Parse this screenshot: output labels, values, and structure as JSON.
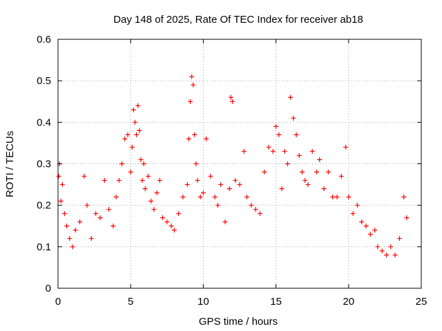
{
  "chart_data": {
    "type": "scatter",
    "title": "Day 148 of 2025, Rate Of TEC Index for receiver ab18",
    "xlabel": "GPS time / hours",
    "ylabel": "ROTI / TECUs",
    "xlim": [
      0,
      25
    ],
    "ylim": [
      0,
      0.6
    ],
    "xticks": [
      0,
      5,
      10,
      15,
      20,
      25
    ],
    "yticks": [
      0,
      0.1,
      0.2,
      0.3,
      0.4,
      0.5,
      0.6
    ],
    "grid": true,
    "marker": "plus",
    "color": "#ff0000",
    "series": [
      {
        "x": [
          0.05,
          0.1,
          0.2,
          0.3,
          0.45,
          0.6,
          0.8,
          1.0,
          1.2,
          1.5,
          1.8,
          2.0,
          2.3,
          2.6,
          2.9,
          3.2,
          3.5,
          3.8,
          4.0,
          4.2,
          4.4,
          4.6,
          4.8,
          5.0,
          5.1,
          5.2,
          5.3,
          5.4,
          5.5,
          5.6,
          5.7,
          5.8,
          5.9,
          6.0,
          6.2,
          6.4,
          6.6,
          6.8,
          7.0,
          7.2,
          7.5,
          7.8,
          8.0,
          8.3,
          8.6,
          8.9,
          9.0,
          9.1,
          9.2,
          9.3,
          9.4,
          9.5,
          9.6,
          9.8,
          10.0,
          10.2,
          10.5,
          10.8,
          11.0,
          11.2,
          11.5,
          11.8,
          11.9,
          12.0,
          12.2,
          12.5,
          12.8,
          13.0,
          13.3,
          13.6,
          13.9,
          14.2,
          14.5,
          14.8,
          15.0,
          15.2,
          15.4,
          15.6,
          15.8,
          16.0,
          16.2,
          16.4,
          16.6,
          16.8,
          17.0,
          17.2,
          17.5,
          17.8,
          18.0,
          18.3,
          18.6,
          18.9,
          19.2,
          19.5,
          19.8,
          20.0,
          20.3,
          20.6,
          20.9,
          21.2,
          21.5,
          21.8,
          22.0,
          22.3,
          22.6,
          22.9,
          23.2,
          23.5,
          23.8,
          24.0
        ],
        "y": [
          0.27,
          0.3,
          0.21,
          0.25,
          0.18,
          0.15,
          0.12,
          0.1,
          0.14,
          0.16,
          0.27,
          0.2,
          0.12,
          0.18,
          0.17,
          0.26,
          0.19,
          0.15,
          0.22,
          0.26,
          0.3,
          0.36,
          0.37,
          0.28,
          0.34,
          0.43,
          0.4,
          0.37,
          0.44,
          0.38,
          0.31,
          0.26,
          0.3,
          0.24,
          0.27,
          0.21,
          0.19,
          0.23,
          0.26,
          0.17,
          0.16,
          0.15,
          0.14,
          0.18,
          0.22,
          0.25,
          0.36,
          0.45,
          0.51,
          0.49,
          0.37,
          0.3,
          0.26,
          0.22,
          0.23,
          0.36,
          0.27,
          0.22,
          0.2,
          0.25,
          0.16,
          0.24,
          0.46,
          0.45,
          0.26,
          0.25,
          0.33,
          0.22,
          0.2,
          0.19,
          0.18,
          0.28,
          0.34,
          0.33,
          0.39,
          0.37,
          0.24,
          0.33,
          0.3,
          0.46,
          0.41,
          0.37,
          0.32,
          0.28,
          0.26,
          0.25,
          0.33,
          0.28,
          0.31,
          0.24,
          0.28,
          0.22,
          0.22,
          0.27,
          0.34,
          0.22,
          0.18,
          0.2,
          0.16,
          0.15,
          0.13,
          0.14,
          0.1,
          0.09,
          0.08,
          0.1,
          0.08,
          0.12,
          0.22,
          0.17
        ]
      }
    ]
  }
}
